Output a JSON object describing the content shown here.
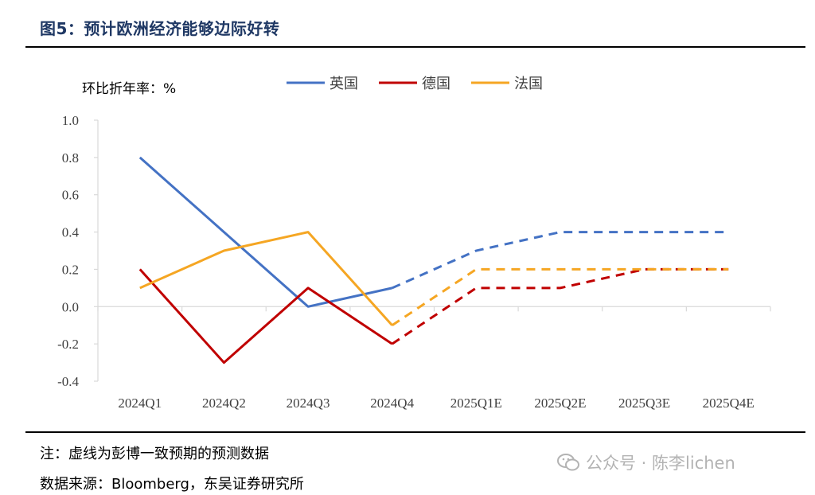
{
  "figure": {
    "title": "图5：预计欧洲经济能够边际好转",
    "note": "注：虚线为彭博一致预期的预测数据",
    "source": "数据来源：Bloomberg，东吴证券研究所",
    "watermark": "公众号 · 陈李lichen",
    "watermark_icon": "wechat-icon"
  },
  "chart_data": {
    "type": "line",
    "ylabel": "环比折年率：%",
    "ylim": [
      -0.4,
      1.0
    ],
    "yticks": [
      "1.0",
      "0.8",
      "0.6",
      "0.4",
      "0.2",
      "0.0",
      "-0.2",
      "-0.4"
    ],
    "ytick_values": [
      1.0,
      0.8,
      0.6,
      0.4,
      0.2,
      0.0,
      -0.2,
      -0.4
    ],
    "categories": [
      "2024Q1",
      "2024Q2",
      "2024Q3",
      "2024Q4",
      "2025Q1E",
      "2025Q2E",
      "2025Q3E",
      "2025Q4E"
    ],
    "actual_through_index": 3,
    "legend_position": "top",
    "grid": false,
    "series": [
      {
        "name": "英国",
        "color": "#4472c4",
        "values": [
          0.8,
          0.4,
          0.0,
          0.1,
          0.3,
          0.4,
          0.4,
          0.4
        ]
      },
      {
        "name": "德国",
        "color": "#c00000",
        "values": [
          0.2,
          -0.3,
          0.1,
          -0.2,
          0.1,
          0.1,
          0.2,
          0.2
        ]
      },
      {
        "name": "法国",
        "color": "#f5a623",
        "values": [
          0.1,
          0.3,
          0.4,
          -0.1,
          0.2,
          0.2,
          0.2,
          0.2
        ]
      }
    ]
  }
}
